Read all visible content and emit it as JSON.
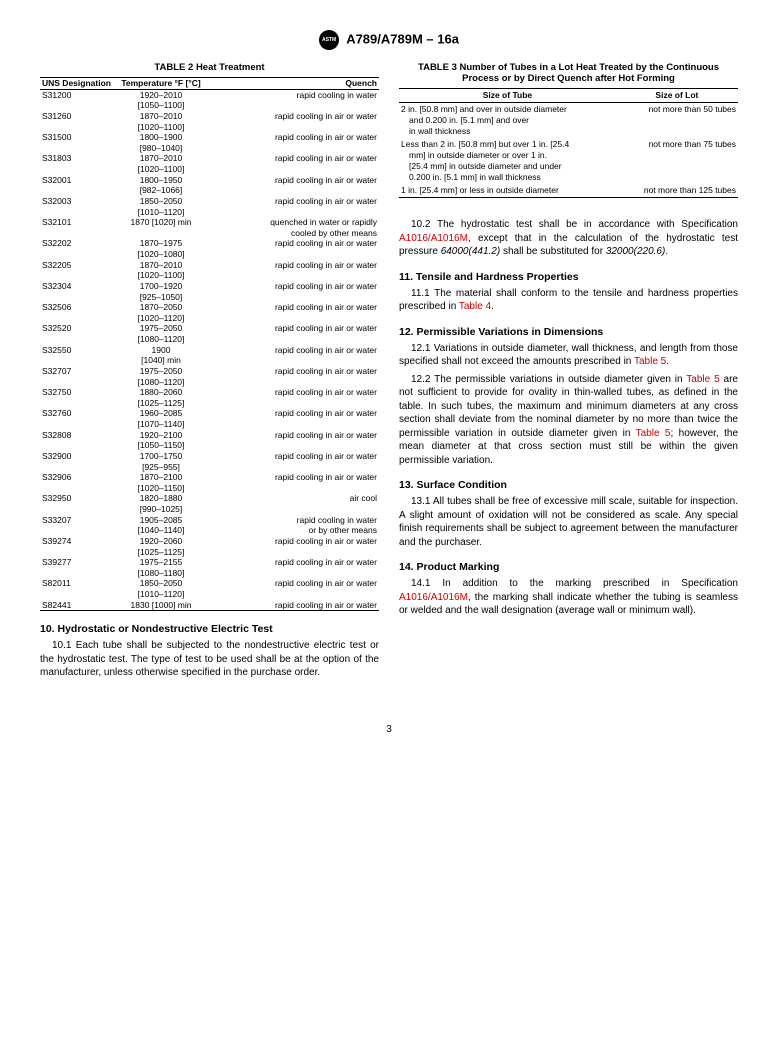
{
  "header": {
    "designation": "A789/A789M – 16a"
  },
  "table2": {
    "caption": "TABLE 2 Heat Treatment",
    "columns": [
      "UNS Designation",
      "Temperature °F [°C]",
      "Quench"
    ],
    "rows": [
      {
        "uns": "S31200",
        "t1": "1920–2010",
        "t2": "[1050–1100]",
        "q": "rapid cooling in water"
      },
      {
        "uns": "S31260",
        "t1": "1870–2010",
        "t2": "[1020–1100]",
        "q": "rapid cooling in air or water"
      },
      {
        "uns": "S31500",
        "t1": "1800–1900",
        "t2": "[980–1040]",
        "q": "rapid cooling in air or water"
      },
      {
        "uns": "S31803",
        "t1": "1870–2010",
        "t2": "[1020–1100]",
        "q": "rapid cooling in air or water"
      },
      {
        "uns": "S32001",
        "t1": "1800–1950",
        "t2": "[982–1066]",
        "q": "rapid cooling in air or water"
      },
      {
        "uns": "S32003",
        "t1": "1850–2050",
        "t2": "[1010–1120]",
        "q": "rapid cooling in air or water"
      },
      {
        "uns": "S32101",
        "t1": "1870 [1020] min",
        "t2": "",
        "q": "quenched in water or rapidly",
        "q2": "cooled by other means"
      },
      {
        "uns": "S32202",
        "t1": "1870–1975",
        "t2": "[1020–1080]",
        "q": "rapid cooling in air or water"
      },
      {
        "uns": "S32205",
        "t1": "1870–2010",
        "t2": "[1020–1100]",
        "q": "rapid cooling in air or water"
      },
      {
        "uns": "S32304",
        "t1": "1700–1920",
        "t2": "[925–1050]",
        "q": "rapid cooling in air or water"
      },
      {
        "uns": "S32506",
        "t1": "1870–2050",
        "t2": "[1020–1120]",
        "q": "rapid cooling in air or water"
      },
      {
        "uns": "S32520",
        "t1": "1975–2050",
        "t2": "[1080–1120]",
        "q": "rapid cooling in air or water"
      },
      {
        "uns": "S32550",
        "t1": "1900",
        "t2": "[1040] min",
        "q": "rapid cooling in air or water"
      },
      {
        "uns": "S32707",
        "t1": "1975–2050",
        "t2": "[1080–1120]",
        "q": "rapid cooling in air or water"
      },
      {
        "uns": "S32750",
        "t1": "1880–2060",
        "t2": "[1025–1125]",
        "q": "rapid cooling in air or water"
      },
      {
        "uns": "S32760",
        "t1": "1960–2085",
        "t2": "[1070–1140]",
        "q": "rapid cooling in air or water"
      },
      {
        "uns": "S32808",
        "t1": "1920–2100",
        "t2": "[1050–1150]",
        "q": "rapid cooling in air or water"
      },
      {
        "uns": "S32900",
        "t1": "1700–1750",
        "t2": "[925–955]",
        "q": "rapid cooling in air or water"
      },
      {
        "uns": "S32906",
        "t1": "1870–2100",
        "t2": "[1020–1150]",
        "q": "rapid cooling in air or water"
      },
      {
        "uns": "S32950",
        "t1": "1820–1880",
        "t2": "[990–1025]",
        "q": "air cool"
      },
      {
        "uns": "S33207",
        "t1": "1905–2085",
        "t2": "[1040–1140]",
        "q": "rapid cooling in water",
        "q2": "or by other means"
      },
      {
        "uns": "S39274",
        "t1": "1920–2060",
        "t2": "[1025–1125]",
        "q": "rapid cooling in air or water"
      },
      {
        "uns": "S39277",
        "t1": "1975–2155",
        "t2": "[1080–1180]",
        "q": "rapid cooling in air or water"
      },
      {
        "uns": "S82011",
        "t1": "1850–2050",
        "t2": "[1010–1120]",
        "q": "rapid cooling in air or water"
      },
      {
        "uns": "S82441",
        "t1": "1830 [1000] min",
        "t2": "",
        "q": "rapid cooling in air or water"
      }
    ]
  },
  "table3": {
    "caption": "TABLE 3 Number of Tubes in a Lot Heat Treated by the Continuous Process or by Direct Quench after Hot Forming",
    "columns": [
      "Size of Tube",
      "Size of Lot"
    ],
    "rows": [
      {
        "size": "2 in. [50.8 mm] and over in outside diameter",
        "s2": "and 0.200 in. [5.1 mm] and over",
        "s3": "in wall thickness",
        "lot": "not more than 50 tubes"
      },
      {
        "size": "Less than 2 in. [50.8 mm] but over 1 in. [25.4",
        "s2": "mm] in outside diameter or over 1 in.",
        "s3": "[25.4 mm] in outside diameter and under",
        "s4": "0.200 in. [5.1 mm] in wall thickness",
        "lot": "not more than 75 tubes"
      },
      {
        "size": "1 in. [25.4 mm] or less in outside diameter",
        "lot": "not more than 125 tubes"
      }
    ]
  },
  "sections": {
    "s10": {
      "title": "10.  Hydrostatic or Nondestructive Electric Test",
      "p1": "10.1 Each tube shall be subjected to the nondestructive electric test or the hydrostatic test. The type of test to be used shall be at the option of the manufacturer, unless otherwise specified in the purchase order.",
      "p2a": "10.2 The hydrostatic test shall be in accordance with Specification ",
      "p2link": "A1016/A1016M",
      "p2b": ", except that in the calculation of the hydrostatic test pressure ",
      "p2i1": "64000(441.2)",
      "p2c": " shall be substituted for ",
      "p2i2": "32000(220.6)",
      "p2d": "."
    },
    "s11": {
      "title": "11.  Tensile and Hardness Properties",
      "p1a": "11.1 The material shall conform to the tensile and hardness properties prescribed in ",
      "p1link": "Table 4",
      "p1b": "."
    },
    "s12": {
      "title": "12.  Permissible Variations in Dimensions",
      "p1a": "12.1 Variations in outside diameter, wall thickness, and length from those specified shall not exceed the amounts prescribed in ",
      "p1link": "Table 5",
      "p1b": ".",
      "p2a": "12.2 The permissible variations in outside diameter given in ",
      "p2link1": "Table 5",
      "p2b": " are not sufficient to provide for ovality in thin-walled tubes, as defined in the table. In such tubes, the maximum and minimum diameters at any cross section shall deviate from the nominal diameter by no more than twice the permissible variation in outside diameter given in ",
      "p2link2": "Table 5",
      "p2c": "; however, the mean diameter at that cross section must still be within the given permissible variation."
    },
    "s13": {
      "title": "13.  Surface Condition",
      "p1": "13.1 All tubes shall be free of excessive mill scale, suitable for inspection. A slight amount of oxidation will not be considered as scale. Any special finish requirements shall be subject to agreement between the manufacturer and the purchaser."
    },
    "s14": {
      "title": "14.  Product Marking",
      "p1a": "14.1 In addition to the marking prescribed in Specification ",
      "p1link": "A1016/A1016M",
      "p1b": ", the marking shall indicate whether the tubing is seamless or welded and the wall designation (average wall or minimum wall)."
    }
  },
  "page": "3"
}
